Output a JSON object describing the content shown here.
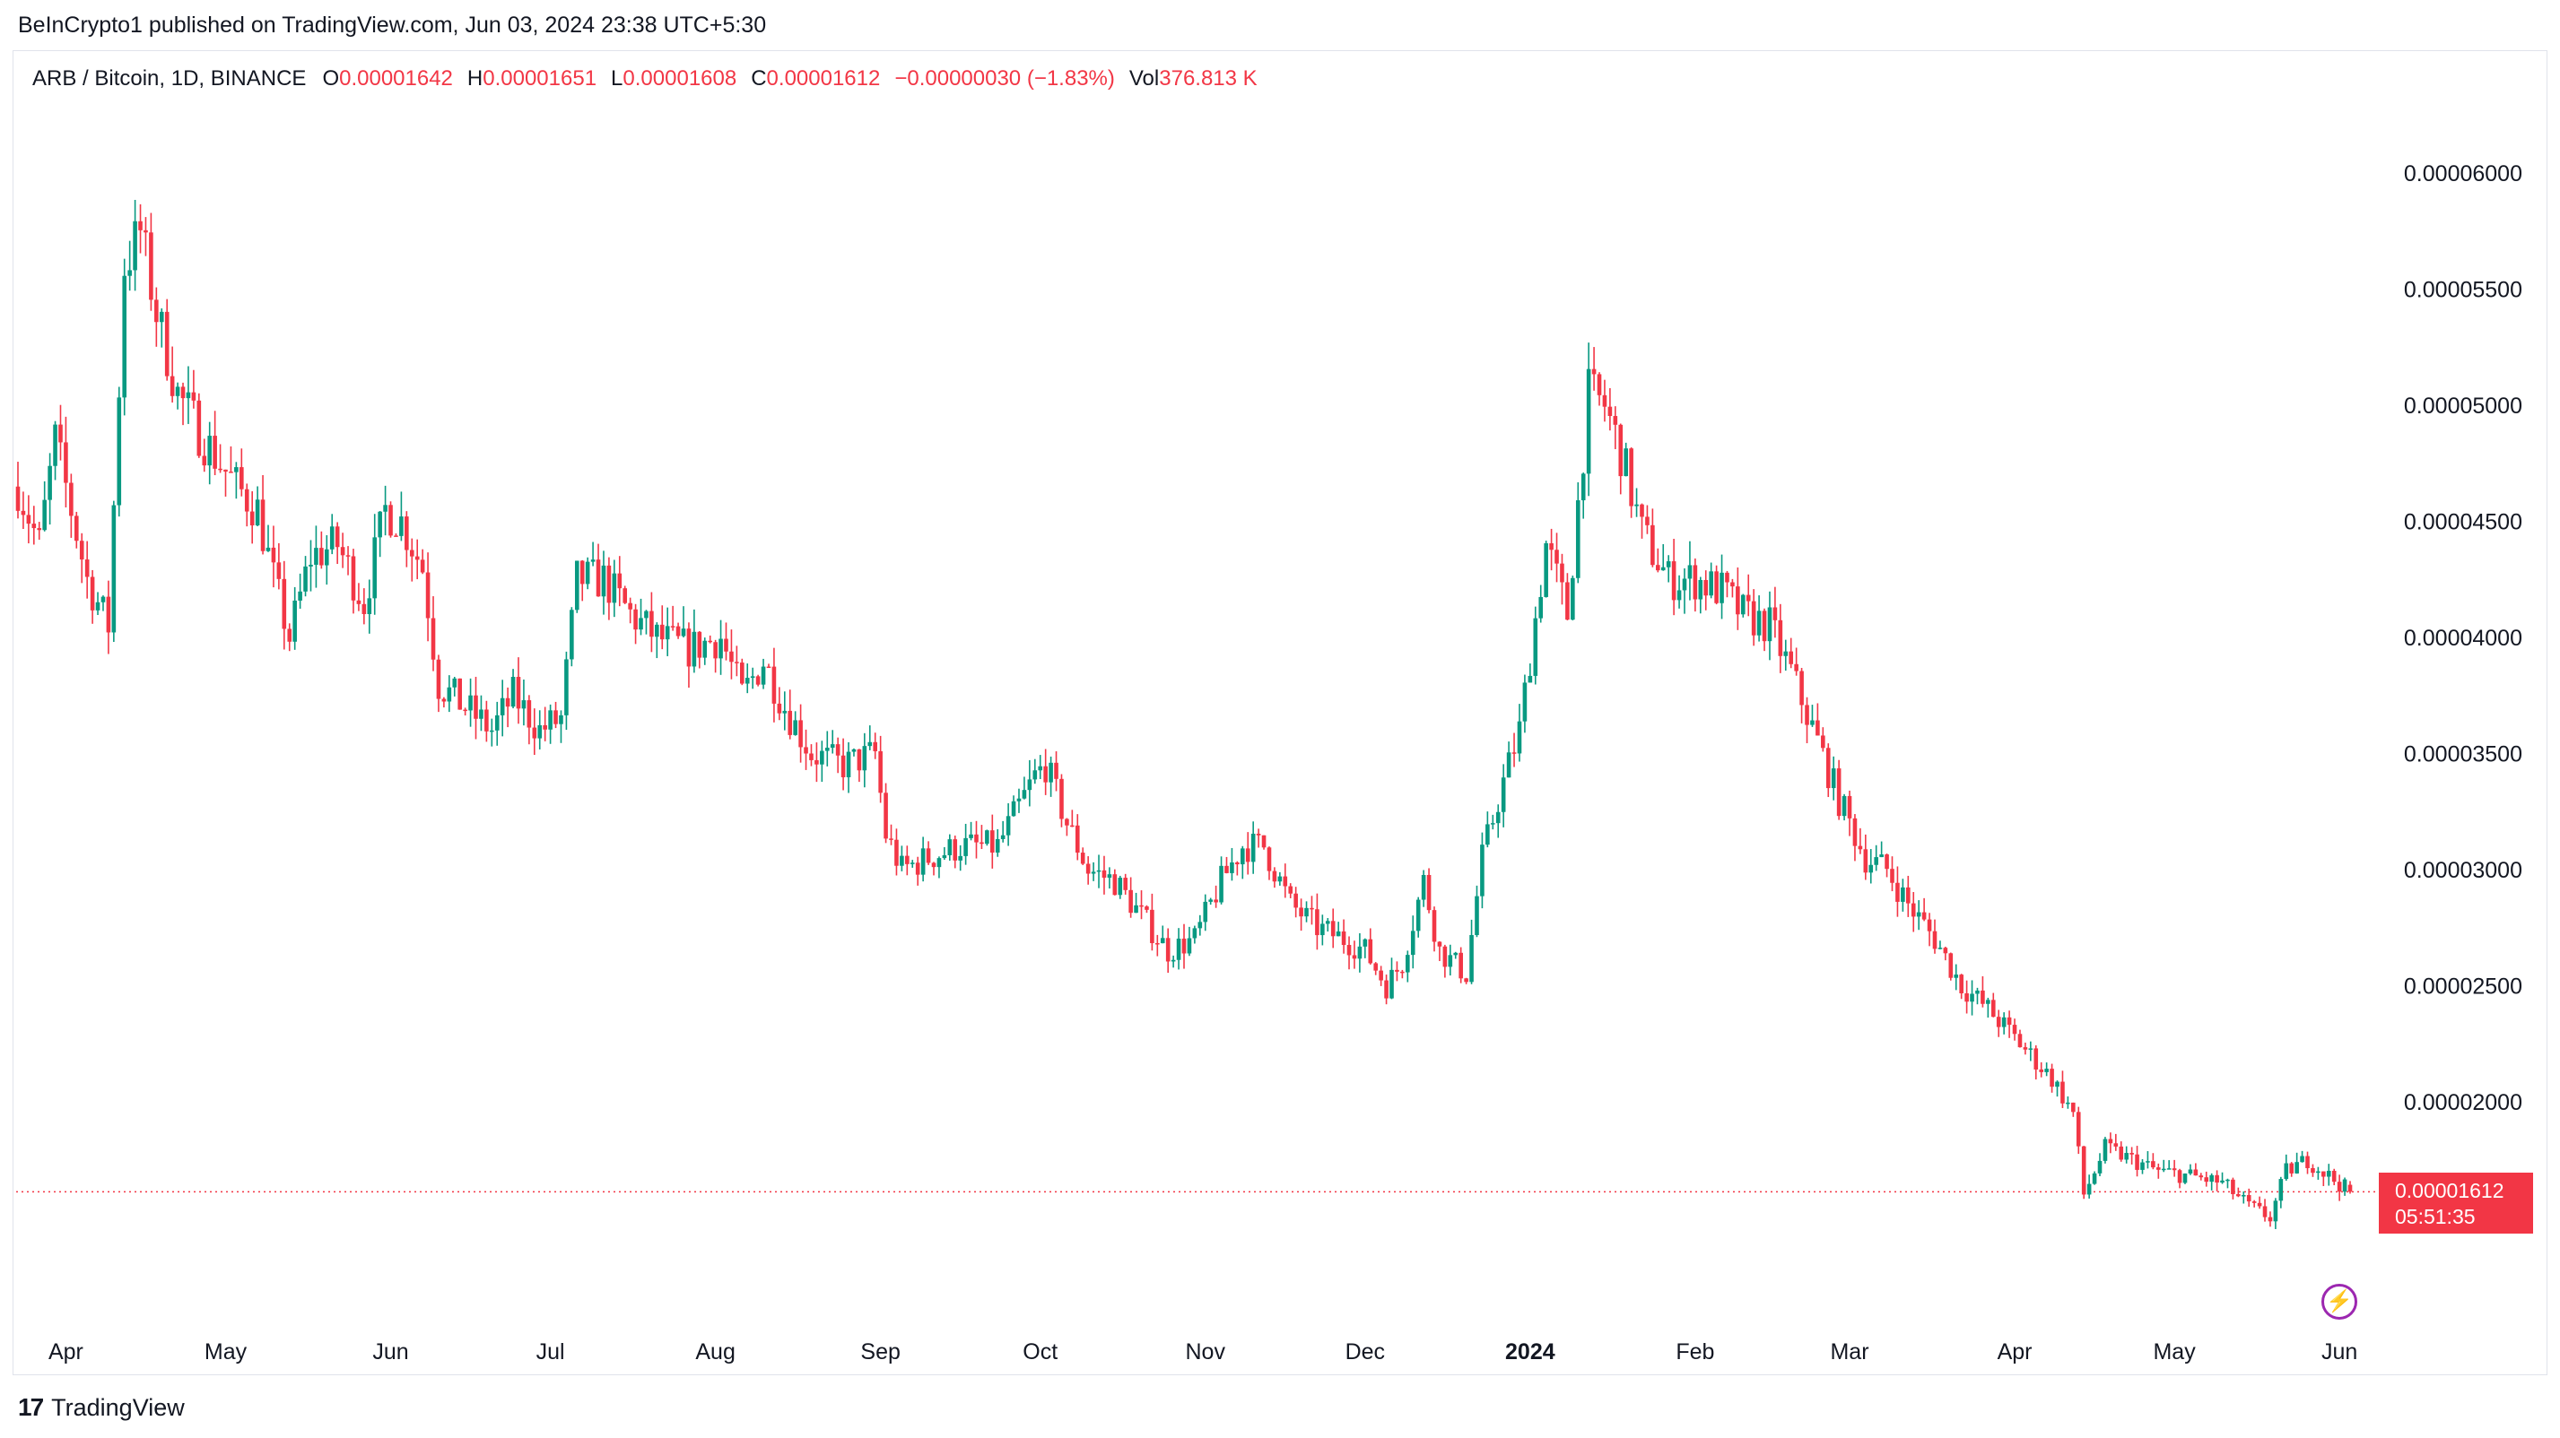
{
  "header": {
    "published_line": "BeInCrypto1 published on TradingView.com, Jun 03, 2024 23:38 UTC+5:30"
  },
  "legend": {
    "symbol": "ARB / Bitcoin, 1D, BINANCE",
    "open_label": "O",
    "open_value": "0.00001642",
    "high_label": "H",
    "high_value": "0.00001651",
    "low_label": "L",
    "low_value": "0.00001608",
    "close_label": "C",
    "close_value": "0.00001612",
    "change": "−0.00000030 (−1.83%)",
    "vol_label": "Vol",
    "vol_value": "376.813 K"
  },
  "price_tag": {
    "price": "0.00001612",
    "countdown": "05:51:35"
  },
  "footer": {
    "brand": "TradingView",
    "logo_glyph": "17"
  },
  "icons": {
    "bolt": "lightning-bolt-icon",
    "bolt_glyph": "⚡"
  },
  "colors": {
    "up": "#089981",
    "down": "#f23645",
    "text": "#131722",
    "grid_border": "#e0e3eb"
  },
  "chart_data": {
    "type": "candlestick",
    "title": "ARB / Bitcoin, 1D, BINANCE",
    "ylim": [
      1.03e-05,
      6.53e-05
    ],
    "y_ticks": [
      6e-05,
      5.5e-05,
      5e-05,
      4.5e-05,
      4e-05,
      3.5e-05,
      3e-05,
      2.5e-05,
      2e-05
    ],
    "y_tick_labels": [
      "0.00006000",
      "0.00005500",
      "0.00005000",
      "0.00004500",
      "0.00004000",
      "0.00003500",
      "0.00003000",
      "0.00002500",
      "0.00002000"
    ],
    "x_labels": [
      {
        "label": "Apr",
        "date": "2023-04-01"
      },
      {
        "label": "May",
        "date": "2023-05-01"
      },
      {
        "label": "Jun",
        "date": "2023-06-01"
      },
      {
        "label": "Jul",
        "date": "2023-07-01"
      },
      {
        "label": "Aug",
        "date": "2023-08-01"
      },
      {
        "label": "Sep",
        "date": "2023-09-01"
      },
      {
        "label": "Oct",
        "date": "2023-10-01"
      },
      {
        "label": "Nov",
        "date": "2023-11-01"
      },
      {
        "label": "Dec",
        "date": "2023-12-01"
      },
      {
        "label": "2024",
        "date": "2024-01-01",
        "bold": true
      },
      {
        "label": "Feb",
        "date": "2024-02-01"
      },
      {
        "label": "Mar",
        "date": "2024-03-01"
      },
      {
        "label": "Apr",
        "date": "2024-04-01"
      },
      {
        "label": "May",
        "date": "2024-05-01"
      },
      {
        "label": "Jun",
        "date": "2024-06-01"
      }
    ],
    "first_date": "2023-03-23",
    "last_date": "2024-06-03",
    "current_price": 1.612e-05,
    "close_anchors": [
      [
        "2023-03-23",
        4.65e-05
      ],
      [
        "2023-03-27",
        4.4e-05
      ],
      [
        "2023-03-30",
        4.85e-05
      ],
      [
        "2023-04-05",
        4.25e-05
      ],
      [
        "2023-04-09",
        4.05e-05
      ],
      [
        "2023-04-12",
        5.6e-05
      ],
      [
        "2023-04-15",
        5.75e-05
      ],
      [
        "2023-04-18",
        5.4e-05
      ],
      [
        "2023-04-22",
        5.05e-05
      ],
      [
        "2023-04-27",
        4.85e-05
      ],
      [
        "2023-05-03",
        4.65e-05
      ],
      [
        "2023-05-07",
        4.55e-05
      ],
      [
        "2023-05-10",
        4.25e-05
      ],
      [
        "2023-05-13",
        4e-05
      ],
      [
        "2023-05-17",
        4.35e-05
      ],
      [
        "2023-05-22",
        4.4e-05
      ],
      [
        "2023-05-27",
        4.15e-05
      ],
      [
        "2023-05-31",
        4.55e-05
      ],
      [
        "2023-06-03",
        4.5e-05
      ],
      [
        "2023-06-07",
        4.3e-05
      ],
      [
        "2023-06-10",
        3.8e-05
      ],
      [
        "2023-06-15",
        3.7e-05
      ],
      [
        "2023-06-20",
        3.6e-05
      ],
      [
        "2023-06-24",
        3.75e-05
      ],
      [
        "2023-06-29",
        3.6e-05
      ],
      [
        "2023-07-03",
        3.65e-05
      ],
      [
        "2023-07-06",
        4.25e-05
      ],
      [
        "2023-07-11",
        4.25e-05
      ],
      [
        "2023-07-16",
        4.1e-05
      ],
      [
        "2023-07-21",
        4e-05
      ],
      [
        "2023-07-27",
        3.95e-05
      ],
      [
        "2023-08-02",
        4e-05
      ],
      [
        "2023-08-06",
        3.75e-05
      ],
      [
        "2023-08-10",
        3.9e-05
      ],
      [
        "2023-08-14",
        3.7e-05
      ],
      [
        "2023-08-19",
        3.5e-05
      ],
      [
        "2023-08-25",
        3.45e-05
      ],
      [
        "2023-08-31",
        3.5e-05
      ],
      [
        "2023-09-02",
        3.15e-05
      ],
      [
        "2023-09-05",
        3e-05
      ],
      [
        "2023-09-10",
        3.05e-05
      ],
      [
        "2023-09-16",
        3.1e-05
      ],
      [
        "2023-09-23",
        3.1e-05
      ],
      [
        "2023-09-30",
        3.4e-05
      ],
      [
        "2023-10-02",
        3.45e-05
      ],
      [
        "2023-10-06",
        3.2e-05
      ],
      [
        "2023-10-10",
        3e-05
      ],
      [
        "2023-10-15",
        2.95e-05
      ],
      [
        "2023-10-20",
        2.8e-05
      ],
      [
        "2023-10-25",
        2.65e-05
      ],
      [
        "2023-10-30",
        2.7e-05
      ],
      [
        "2023-11-04",
        2.95e-05
      ],
      [
        "2023-11-08",
        3.1e-05
      ],
      [
        "2023-11-12",
        3.1e-05
      ],
      [
        "2023-11-17",
        2.85e-05
      ],
      [
        "2023-11-22",
        2.75e-05
      ],
      [
        "2023-11-27",
        2.7e-05
      ],
      [
        "2023-12-01",
        2.65e-05
      ],
      [
        "2023-12-05",
        2.5e-05
      ],
      [
        "2023-12-08",
        2.6e-05
      ],
      [
        "2023-12-12",
        2.95e-05
      ],
      [
        "2023-12-15",
        2.65e-05
      ],
      [
        "2023-12-20",
        2.55e-05
      ],
      [
        "2023-12-23",
        3.05e-05
      ],
      [
        "2023-12-26",
        3.3e-05
      ],
      [
        "2023-12-30",
        3.6e-05
      ],
      [
        "2024-01-04",
        4.4e-05
      ],
      [
        "2024-01-08",
        4.1e-05
      ],
      [
        "2024-01-12",
        5.05e-05
      ],
      [
        "2024-01-15",
        5e-05
      ],
      [
        "2024-01-18",
        4.8e-05
      ],
      [
        "2024-01-22",
        4.45e-05
      ],
      [
        "2024-01-27",
        4.25e-05
      ],
      [
        "2024-02-01",
        4.25e-05
      ],
      [
        "2024-02-06",
        4.2e-05
      ],
      [
        "2024-02-10",
        4.1e-05
      ],
      [
        "2024-02-15",
        4.05e-05
      ],
      [
        "2024-02-19",
        3.85e-05
      ],
      [
        "2024-02-24",
        3.55e-05
      ],
      [
        "2024-02-28",
        3.3e-05
      ],
      [
        "2024-03-04",
        3.05e-05
      ],
      [
        "2024-03-08",
        3e-05
      ],
      [
        "2024-03-12",
        2.85e-05
      ],
      [
        "2024-03-17",
        2.7e-05
      ],
      [
        "2024-03-22",
        2.5e-05
      ],
      [
        "2024-03-27",
        2.4e-05
      ],
      [
        "2024-04-02",
        2.25e-05
      ],
      [
        "2024-04-08",
        2.1e-05
      ],
      [
        "2024-04-12",
        1.95e-05
      ],
      [
        "2024-04-14",
        1.6e-05
      ],
      [
        "2024-04-18",
        1.8e-05
      ],
      [
        "2024-04-23",
        1.75e-05
      ],
      [
        "2024-04-28",
        1.7e-05
      ],
      [
        "2024-05-04",
        1.68e-05
      ],
      [
        "2024-05-10",
        1.65e-05
      ],
      [
        "2024-05-15",
        1.55e-05
      ],
      [
        "2024-05-19",
        1.5e-05
      ],
      [
        "2024-05-22",
        1.7e-05
      ],
      [
        "2024-05-26",
        1.75e-05
      ],
      [
        "2024-05-30",
        1.68e-05
      ],
      [
        "2024-06-03",
        1.612e-05
      ]
    ]
  }
}
